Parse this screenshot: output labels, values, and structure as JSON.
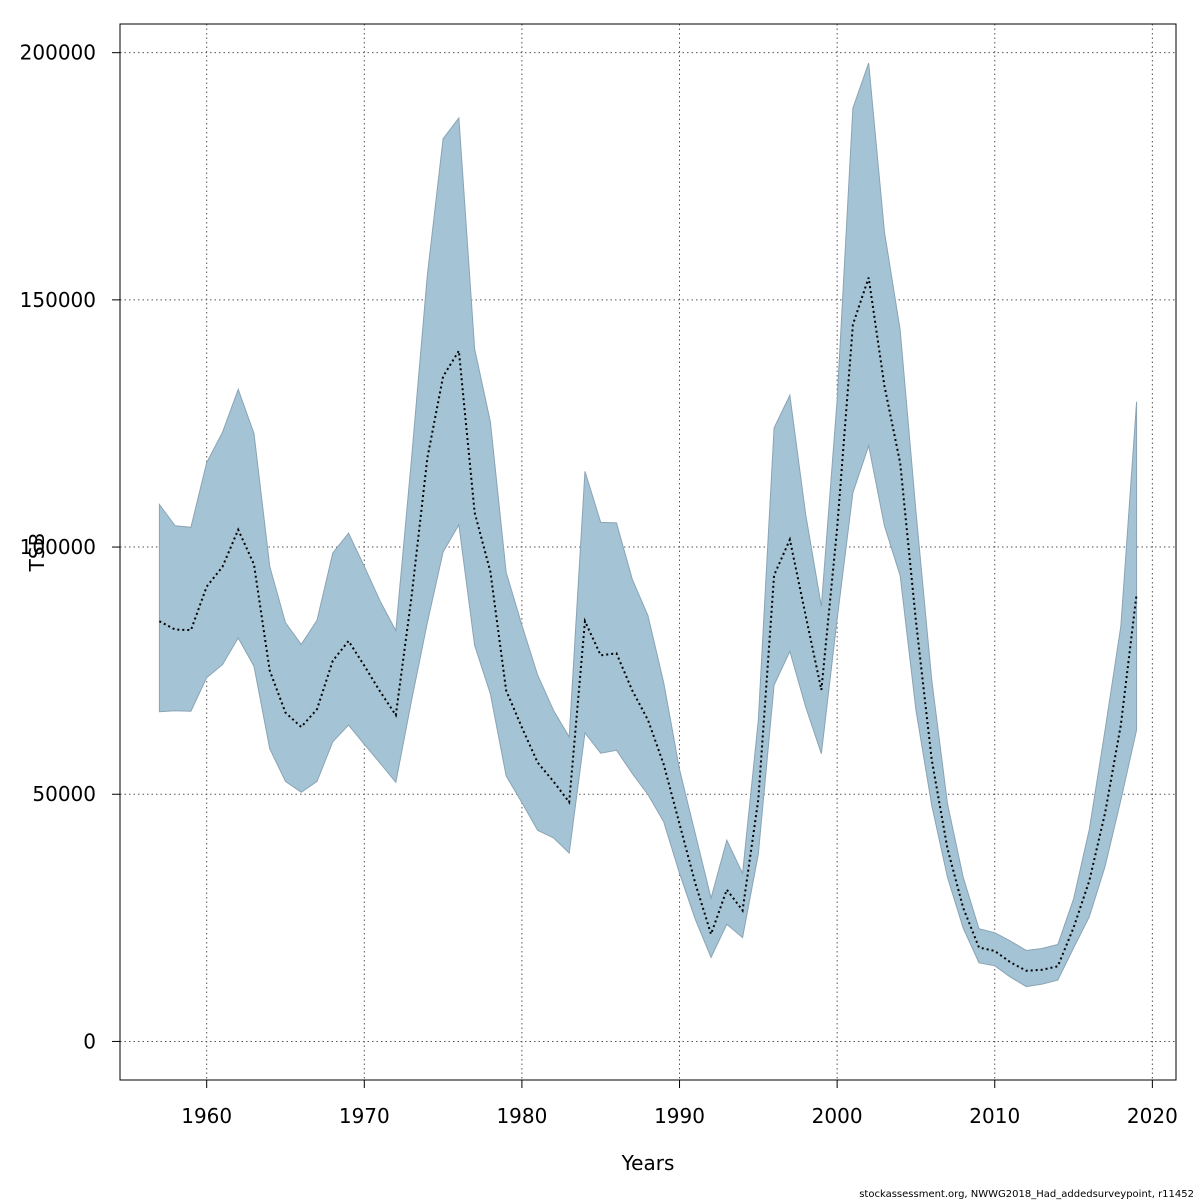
{
  "chart_data": {
    "type": "area",
    "title": "",
    "xlabel": "Years",
    "ylabel": "TSB",
    "xlim": [
      1954.5,
      2021.5
    ],
    "ylim": [
      -7800,
      205800
    ],
    "x_ticks": [
      1960,
      1970,
      1980,
      1990,
      2000,
      2010,
      2020
    ],
    "y_ticks": [
      0,
      50000,
      100000,
      150000,
      200000
    ],
    "grid": true,
    "legend": "none",
    "colors": {
      "band": "#a4c3d5",
      "band_edge": "#8aa4b4",
      "line": "#000000",
      "grid": "#555555"
    },
    "x": [
      1957,
      1958,
      1959,
      1960,
      1961,
      1962,
      1963,
      1964,
      1965,
      1966,
      1967,
      1968,
      1969,
      1970,
      1971,
      1972,
      1973,
      1974,
      1975,
      1976,
      1977,
      1978,
      1979,
      1980,
      1981,
      1982,
      1983,
      1984,
      1985,
      1986,
      1987,
      1988,
      1989,
      1990,
      1991,
      1992,
      1993,
      1994,
      1995,
      1996,
      1997,
      1998,
      1999,
      2000,
      2001,
      2002,
      2003,
      2004,
      2005,
      2006,
      2007,
      2008,
      2009,
      2010,
      2011,
      2012,
      2013,
      2014,
      2015,
      2016,
      2017,
      2018,
      2019
    ],
    "series": [
      {
        "type": "line",
        "style": "dotted",
        "values": [
          85000,
          83300,
          83200,
          92000,
          96000,
          103500,
          96500,
          75000,
          66500,
          63600,
          67200,
          77000,
          81000,
          76000,
          70800,
          66000,
          90000,
          118000,
          134500,
          139700,
          107000,
          95000,
          71000,
          63500,
          56400,
          52600,
          48400,
          85000,
          78100,
          78500,
          71000,
          65000,
          56000,
          44000,
          32000,
          21700,
          30700,
          26500,
          49000,
          94300,
          101500,
          86200,
          71100,
          103800,
          145000,
          154500,
          132600,
          117000,
          85000,
          57000,
          39000,
          27000,
          19000,
          18300,
          16000,
          14300,
          14500,
          15200,
          23000,
          32500,
          46200,
          64000,
          90500
        ]
      },
      {
        "type": "band",
        "lower": [
          66700,
          66900,
          66800,
          73600,
          76200,
          81600,
          75900,
          59200,
          52600,
          50400,
          52600,
          60600,
          64000,
          60100,
          56300,
          52400,
          69000,
          84700,
          99000,
          104500,
          80100,
          70300,
          53700,
          48300,
          42700,
          41200,
          38100,
          62400,
          58300,
          58900,
          54200,
          49900,
          44400,
          34000,
          24700,
          17000,
          23700,
          21000,
          37900,
          72100,
          78900,
          67700,
          58200,
          85400,
          111000,
          120500,
          104300,
          94200,
          67000,
          47800,
          33200,
          22900,
          15900,
          15300,
          13000,
          11100,
          11600,
          12400,
          18900,
          25200,
          35400,
          48800,
          63000
        ],
        "upper": [
          108600,
          104300,
          104000,
          117100,
          123200,
          131900,
          123000,
          96100,
          84700,
          80300,
          85200,
          98800,
          102800,
          96100,
          89100,
          83100,
          118000,
          155000,
          182600,
          186800,
          140100,
          125300,
          94900,
          84200,
          74100,
          67000,
          61600,
          115300,
          105000,
          104900,
          93500,
          86100,
          72500,
          55000,
          42000,
          29000,
          40700,
          34000,
          65000,
          124100,
          130700,
          106700,
          88000,
          129800,
          188800,
          197900,
          163800,
          143900,
          107200,
          73200,
          48100,
          33200,
          22800,
          22000,
          20300,
          18400,
          18800,
          19600,
          28800,
          42900,
          63000,
          84000,
          129400
        ]
      }
    ]
  },
  "footer_note": "stockassessment.org, NWWG2018_Had_addedsurveypoint, r11452"
}
